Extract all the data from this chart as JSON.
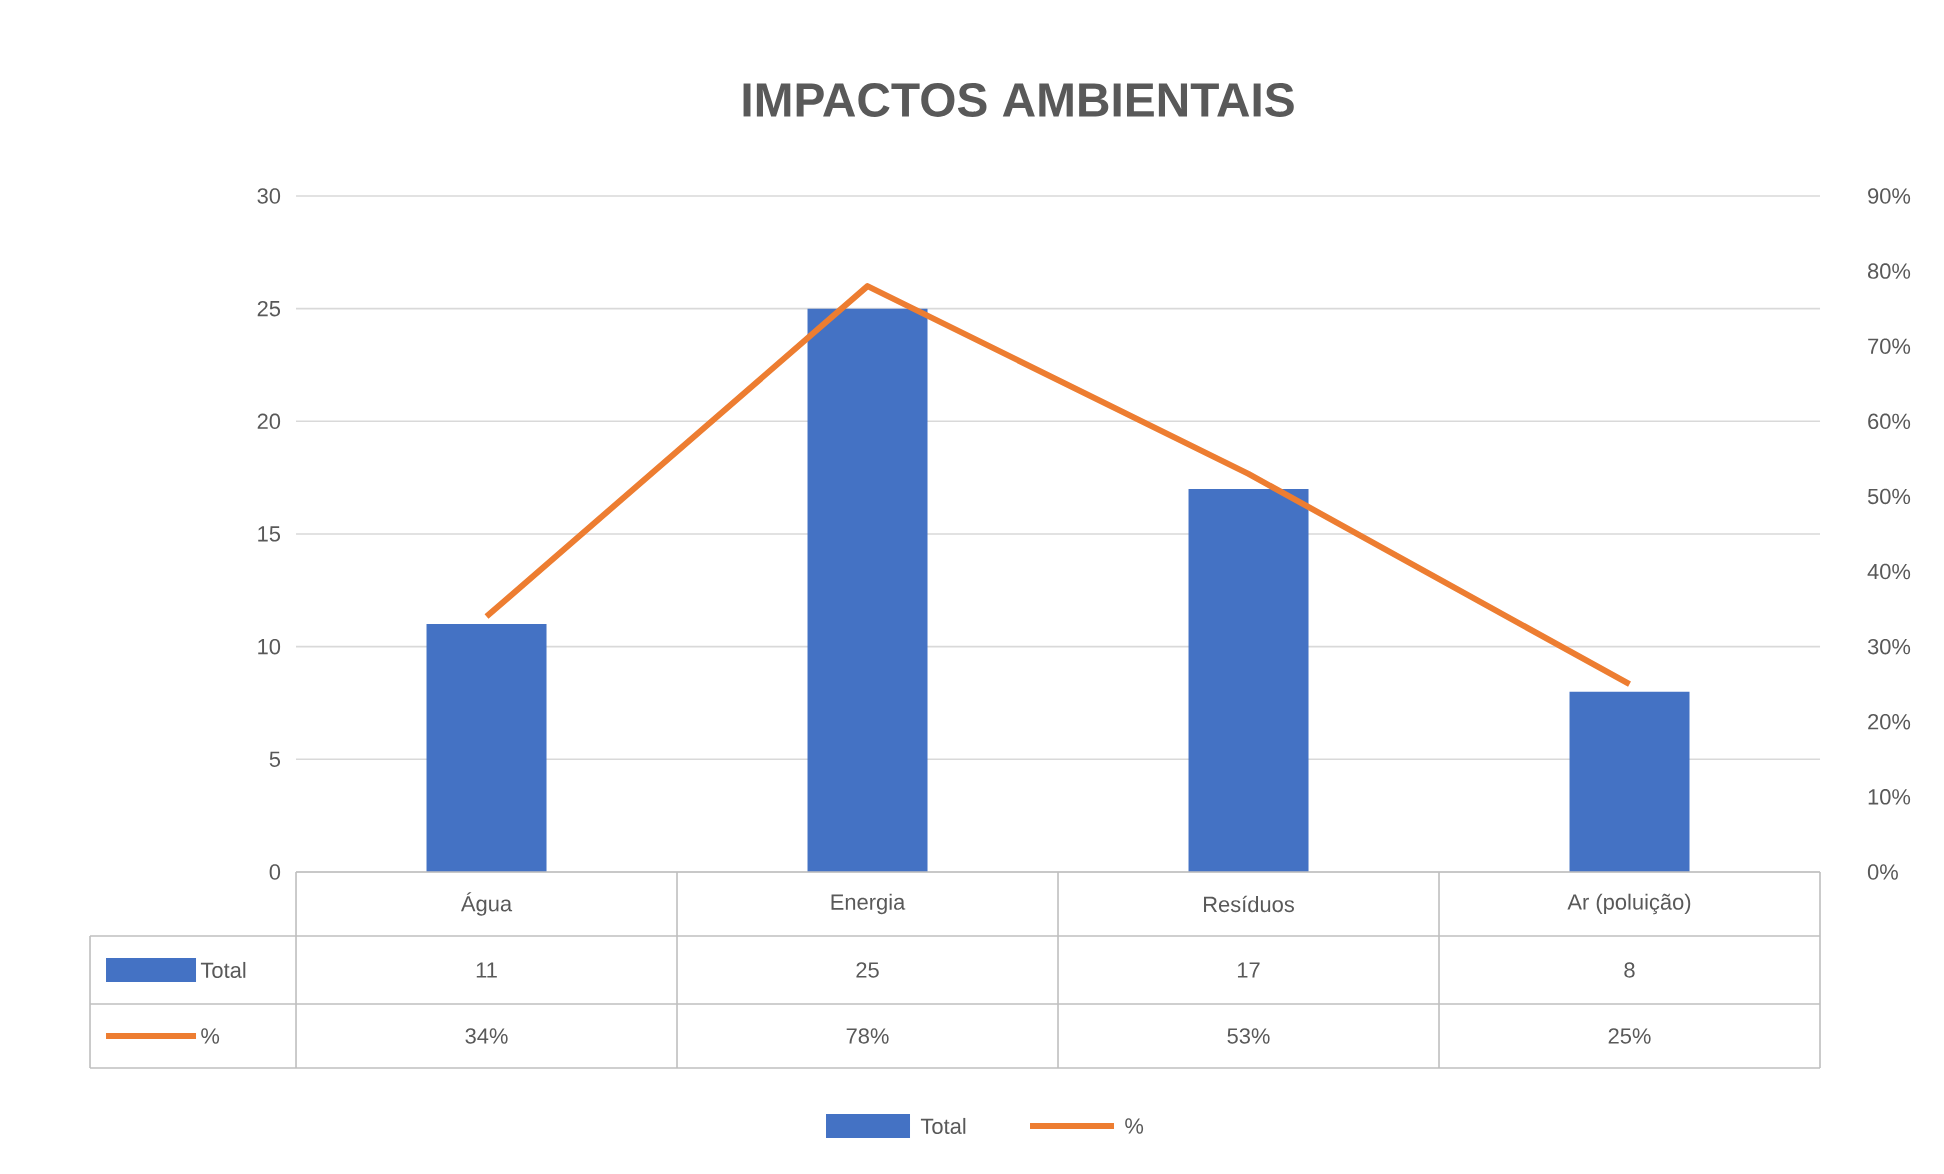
{
  "chart_data": {
    "type": "bar",
    "title": "IMPACTOS AMBIENTAIS",
    "categories": [
      "Água",
      "Energia",
      "Resíduos",
      "Ar (poluição)"
    ],
    "series": [
      {
        "name": "Total",
        "color": "#4472c4",
        "values": [
          11,
          25,
          17,
          8
        ],
        "value_labels": [
          "11",
          "25",
          "17",
          "8"
        ]
      },
      {
        "name": "%",
        "type": "line",
        "axis": "y2",
        "color": "#ed7d31",
        "values": [
          34,
          78,
          53,
          25
        ],
        "value_labels": [
          "34%",
          "78%",
          "53%",
          "25%"
        ]
      }
    ],
    "ylim": [
      0,
      30
    ],
    "yticks": [
      0,
      5,
      10,
      15,
      20,
      25,
      30
    ],
    "y2lim": [
      0,
      90
    ],
    "y2ticks": [
      {
        "value": 0,
        "label": "0%"
      },
      {
        "value": 10,
        "label": "10%"
      },
      {
        "value": 20,
        "label": "20%"
      },
      {
        "value": 30,
        "label": "30%"
      },
      {
        "value": 40,
        "label": "40%"
      },
      {
        "value": 50,
        "label": "50%"
      },
      {
        "value": 60,
        "label": "60%"
      },
      {
        "value": 70,
        "label": "70%"
      },
      {
        "value": 80,
        "label": "80%"
      },
      {
        "value": 90,
        "label": "90%"
      }
    ],
    "grid": "y",
    "legend": "bottom"
  }
}
